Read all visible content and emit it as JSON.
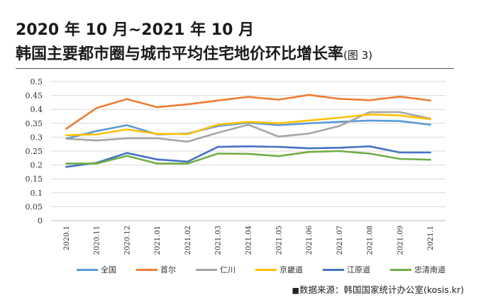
{
  "title": {
    "line1": "2020 年 10 月~2021 年 10 月",
    "line2": "韩国主要都市圈与城市平均住宅地价环比增长率",
    "figure_ref": "(图 3)"
  },
  "source": {
    "marker": "■",
    "text": "数据来源：韩国国家统计办公室(kosis.kr)"
  },
  "chart_data": {
    "type": "line",
    "categories": [
      "2020.1",
      "2020.11",
      "2020.12",
      "2021.01",
      "2021.02",
      "2021.03",
      "2021.04",
      "2021.05",
      "2021.06",
      "2021.07",
      "2021.08",
      "2021.09",
      "2021.1"
    ],
    "y_ticks": [
      "0",
      "0.05",
      "0.1",
      "0.15",
      "0.2",
      "0.25",
      "0.3",
      "0.35",
      "0.4",
      "0.45",
      "0.5"
    ],
    "ylim": [
      0,
      0.5
    ],
    "grid": true,
    "legend_position": "bottom",
    "series": [
      {
        "name": "全国",
        "color": "#5b9bd5",
        "values": [
          0.295,
          0.322,
          0.343,
          0.31,
          0.313,
          0.34,
          0.352,
          0.343,
          0.35,
          0.355,
          0.36,
          0.358,
          0.345
        ]
      },
      {
        "name": "首尔",
        "color": "#ed7d31",
        "values": [
          0.33,
          0.405,
          0.437,
          0.408,
          0.418,
          0.432,
          0.445,
          0.435,
          0.452,
          0.438,
          0.433,
          0.446,
          0.432
        ]
      },
      {
        "name": "仁川",
        "color": "#a5a5a5",
        "values": [
          0.295,
          0.288,
          0.296,
          0.296,
          0.284,
          0.316,
          0.345,
          0.302,
          0.313,
          0.34,
          0.39,
          0.39,
          0.367
        ]
      },
      {
        "name": "京畿道",
        "color": "#ffc000",
        "values": [
          0.307,
          0.31,
          0.328,
          0.312,
          0.311,
          0.345,
          0.355,
          0.35,
          0.36,
          0.37,
          0.382,
          0.378,
          0.365
        ]
      },
      {
        "name": "江原道",
        "color": "#4472c4",
        "values": [
          0.193,
          0.208,
          0.243,
          0.22,
          0.212,
          0.265,
          0.267,
          0.265,
          0.26,
          0.262,
          0.267,
          0.245,
          0.245
        ]
      },
      {
        "name": "忠清南道",
        "color": "#70ad47",
        "values": [
          0.205,
          0.205,
          0.233,
          0.205,
          0.205,
          0.241,
          0.24,
          0.232,
          0.247,
          0.25,
          0.241,
          0.222,
          0.219
        ]
      }
    ]
  }
}
